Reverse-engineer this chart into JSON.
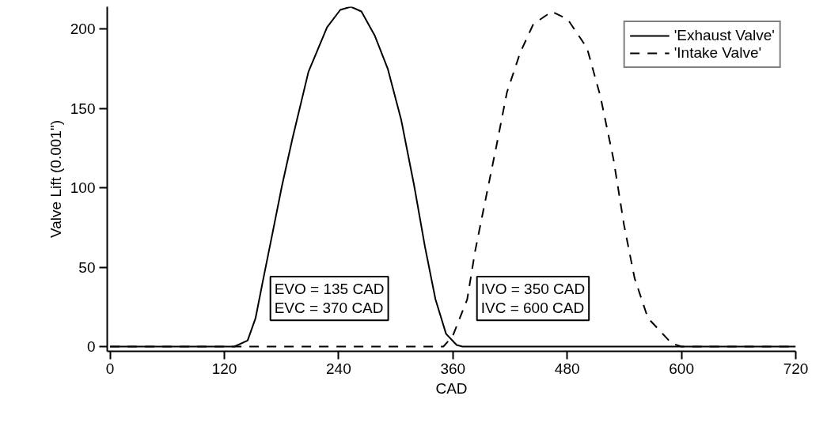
{
  "chart_data": {
    "type": "line",
    "xlabel": "CAD",
    "ylabel": "Valve Lift (0.001\")",
    "xlim": [
      -3,
      720
    ],
    "ylim": [
      -3,
      214
    ],
    "xticks": [
      0,
      120,
      240,
      360,
      480,
      600,
      720
    ],
    "yticks": [
      0,
      50,
      100,
      150,
      200
    ],
    "grid": false,
    "legend": "top right",
    "marker": "none",
    "series": [
      {
        "name": "'Exhaust Valve'",
        "color": "#000000",
        "line_style": "solid",
        "x": [
          0,
          130.5,
          144.4,
          152.8,
          161,
          169.4,
          180.6,
          191.7,
          208.3,
          227.8,
          241.7,
          252.8,
          263.9,
          277.8,
          291.7,
          305.6,
          319.4,
          330.6,
          341.7,
          352.8,
          363.9,
          370,
          720
        ],
        "values": [
          0,
          0,
          3.8,
          18,
          43,
          68,
          101.5,
          131.5,
          173,
          201,
          212,
          214,
          211,
          196,
          174.7,
          143,
          101,
          63,
          29.7,
          8,
          1,
          0,
          0
        ]
      },
      {
        "name": "'Intake Valve'",
        "color": "#000000",
        "line_style": "dashed",
        "x": [
          0,
          350,
          359.7,
          375,
          383.3,
          394.4,
          405.6,
          416.7,
          430.6,
          444.4,
          463.9,
          480.6,
          500.8,
          514.7,
          528.6,
          539.7,
          550.8,
          564.7,
          589.7,
          600,
          720
        ],
        "values": [
          0,
          0,
          6.5,
          29.7,
          60,
          93,
          126,
          160,
          185,
          203,
          211,
          206,
          188,
          158,
          118,
          76.5,
          43,
          18,
          2,
          0,
          0
        ]
      }
    ],
    "annotations": [
      "EVO = 135 CAD\nEVC = 370 CAD",
      "IVO = 350 CAD\nIVC = 600 CAD"
    ]
  }
}
